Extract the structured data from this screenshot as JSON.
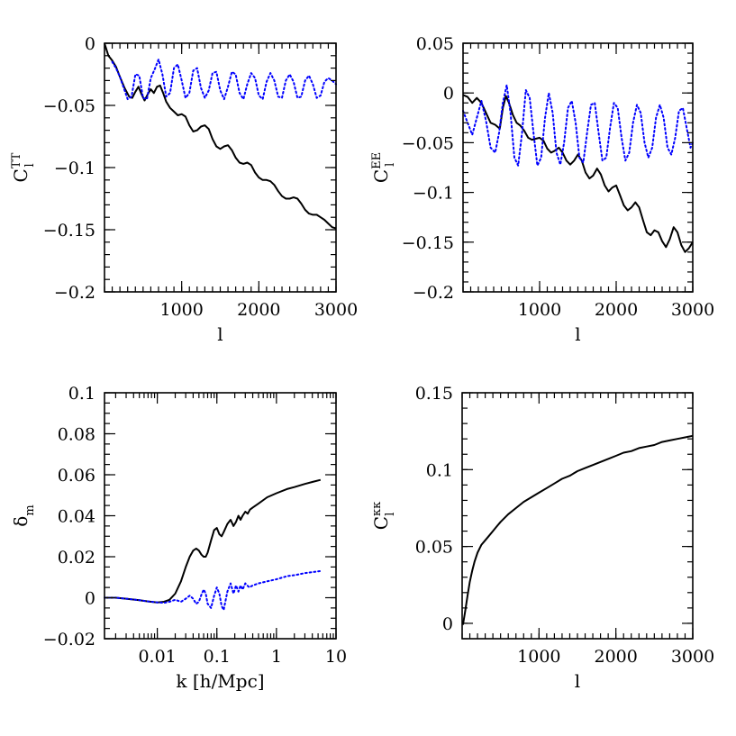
{
  "chart_data": [
    {
      "type": "line",
      "xlabel": "l",
      "ylabel": "C",
      "ylabel_sub": "l",
      "ylabel_sup": "TT",
      "xlim": [
        0,
        3000
      ],
      "ylim": [
        -0.2,
        0
      ],
      "x_scale": "linear",
      "x_ticks": [
        1000,
        2000,
        3000
      ],
      "x_tick_labels": [
        "1000",
        "2000",
        "3000"
      ],
      "y_ticks": [
        -0.2,
        -0.15,
        -0.1,
        -0.05,
        0
      ],
      "y_tick_labels": [
        "−0.2",
        "−0.15",
        "−0.1",
        "−0.05",
        "0"
      ],
      "x_minor": 100,
      "y_minor": 0.01,
      "grid": false,
      "series": [
        {
          "style": "solid",
          "color": "#000000",
          "x": [
            0,
            50,
            100,
            150,
            200,
            260,
            320,
            360,
            400,
            440,
            480,
            520,
            560,
            600,
            640,
            680,
            720,
            760,
            800,
            850,
            900,
            950,
            1000,
            1050,
            1100,
            1150,
            1200,
            1250,
            1300,
            1350,
            1400,
            1450,
            1500,
            1550,
            1600,
            1650,
            1700,
            1750,
            1800,
            1850,
            1900,
            1950,
            2000,
            2050,
            2100,
            2150,
            2200,
            2250,
            2300,
            2350,
            2400,
            2450,
            2500,
            2550,
            2600,
            2650,
            2700,
            2750,
            2800,
            2850,
            2900,
            2950,
            3000
          ],
          "y": [
            0,
            -0.01,
            -0.014,
            -0.019,
            -0.027,
            -0.036,
            -0.043,
            -0.044,
            -0.039,
            -0.035,
            -0.041,
            -0.046,
            -0.041,
            -0.037,
            -0.04,
            -0.035,
            -0.034,
            -0.04,
            -0.047,
            -0.052,
            -0.055,
            -0.058,
            -0.057,
            -0.059,
            -0.066,
            -0.071,
            -0.07,
            -0.067,
            -0.066,
            -0.069,
            -0.077,
            -0.083,
            -0.085,
            -0.083,
            -0.082,
            -0.086,
            -0.092,
            -0.096,
            -0.097,
            -0.096,
            -0.098,
            -0.104,
            -0.108,
            -0.11,
            -0.11,
            -0.111,
            -0.114,
            -0.119,
            -0.123,
            -0.125,
            -0.125,
            -0.124,
            -0.125,
            -0.129,
            -0.134,
            -0.137,
            -0.138,
            -0.138,
            -0.14,
            -0.142,
            -0.145,
            -0.148,
            -0.149
          ]
        },
        {
          "style": "dotted",
          "color": "#0000ff",
          "x": [
            100,
            150,
            200,
            250,
            300,
            350,
            400,
            450,
            500,
            550,
            600,
            650,
            700,
            750,
            800,
            850,
            900,
            950,
            1000,
            1050,
            1100,
            1150,
            1200,
            1250,
            1300,
            1350,
            1400,
            1450,
            1500,
            1550,
            1600,
            1650,
            1700,
            1750,
            1800,
            1850,
            1900,
            1950,
            2000,
            2050,
            2100,
            2150,
            2200,
            2250,
            2300,
            2350,
            2400,
            2450,
            2500,
            2550,
            2600,
            2650,
            2700,
            2750,
            2800,
            2850,
            2900,
            2950,
            3000
          ],
          "y": [
            -0.015,
            -0.02,
            -0.027,
            -0.036,
            -0.045,
            -0.043,
            -0.025,
            -0.026,
            -0.044,
            -0.045,
            -0.028,
            -0.021,
            -0.013,
            -0.025,
            -0.043,
            -0.04,
            -0.02,
            -0.017,
            -0.03,
            -0.044,
            -0.04,
            -0.022,
            -0.02,
            -0.036,
            -0.044,
            -0.038,
            -0.024,
            -0.023,
            -0.038,
            -0.045,
            -0.035,
            -0.023,
            -0.025,
            -0.04,
            -0.045,
            -0.033,
            -0.024,
            -0.028,
            -0.042,
            -0.045,
            -0.031,
            -0.024,
            -0.03,
            -0.043,
            -0.044,
            -0.03,
            -0.025,
            -0.031,
            -0.044,
            -0.043,
            -0.03,
            -0.026,
            -0.033,
            -0.044,
            -0.042,
            -0.031,
            -0.028,
            -0.03,
            -0.033
          ]
        }
      ]
    },
    {
      "type": "line",
      "xlabel": "l",
      "ylabel": "C",
      "ylabel_sub": "l",
      "ylabel_sup": "EE",
      "xlim": [
        0,
        3000
      ],
      "ylim": [
        -0.2,
        0.05
      ],
      "x_scale": "linear",
      "x_ticks": [
        1000,
        2000,
        3000
      ],
      "x_tick_labels": [
        "1000",
        "2000",
        "3000"
      ],
      "y_ticks": [
        -0.2,
        -0.15,
        -0.1,
        -0.05,
        0,
        0.05
      ],
      "y_tick_labels": [
        "−0.2",
        "−0.15",
        "−0.1",
        "−0.05",
        "0",
        "0.05"
      ],
      "x_minor": 100,
      "y_minor": 0.01,
      "grid": false,
      "series": [
        {
          "style": "solid",
          "color": "#000000",
          "x": [
            0,
            60,
            120,
            180,
            240,
            300,
            360,
            420,
            480,
            520,
            560,
            600,
            650,
            700,
            750,
            800,
            850,
            900,
            950,
            1000,
            1050,
            1100,
            1150,
            1200,
            1250,
            1300,
            1350,
            1400,
            1450,
            1500,
            1550,
            1600,
            1650,
            1700,
            1750,
            1800,
            1850,
            1900,
            1950,
            2000,
            2050,
            2100,
            2150,
            2200,
            2250,
            2300,
            2350,
            2400,
            2450,
            2500,
            2550,
            2600,
            2650,
            2700,
            2750,
            2800,
            2850,
            2900,
            2950,
            3000
          ],
          "y": [
            -0.002,
            -0.004,
            -0.01,
            -0.005,
            -0.01,
            -0.02,
            -0.03,
            -0.032,
            -0.036,
            -0.015,
            -0.003,
            -0.01,
            -0.022,
            -0.03,
            -0.033,
            -0.038,
            -0.045,
            -0.047,
            -0.046,
            -0.045,
            -0.048,
            -0.056,
            -0.06,
            -0.058,
            -0.055,
            -0.06,
            -0.068,
            -0.072,
            -0.068,
            -0.062,
            -0.068,
            -0.08,
            -0.086,
            -0.083,
            -0.076,
            -0.082,
            -0.093,
            -0.099,
            -0.095,
            -0.093,
            -0.103,
            -0.113,
            -0.118,
            -0.115,
            -0.11,
            -0.115,
            -0.128,
            -0.14,
            -0.143,
            -0.138,
            -0.14,
            -0.149,
            -0.155,
            -0.147,
            -0.135,
            -0.14,
            -0.153,
            -0.16,
            -0.156,
            -0.15
          ]
        },
        {
          "style": "dotted",
          "color": "#0000ff",
          "x": [
            0,
            60,
            120,
            180,
            240,
            300,
            360,
            420,
            470,
            520,
            570,
            620,
            670,
            720,
            770,
            820,
            870,
            920,
            970,
            1020,
            1070,
            1120,
            1170,
            1220,
            1270,
            1320,
            1370,
            1420,
            1470,
            1520,
            1570,
            1620,
            1670,
            1720,
            1770,
            1820,
            1870,
            1920,
            1970,
            2020,
            2070,
            2120,
            2170,
            2220,
            2270,
            2320,
            2370,
            2420,
            2470,
            2520,
            2570,
            2620,
            2670,
            2720,
            2770,
            2820,
            2870,
            2920,
            2970,
            3000
          ],
          "y": [
            -0.018,
            -0.03,
            -0.042,
            -0.025,
            -0.008,
            -0.028,
            -0.055,
            -0.06,
            -0.04,
            -0.01,
            0.008,
            -0.02,
            -0.065,
            -0.073,
            -0.04,
            0.003,
            -0.005,
            -0.04,
            -0.073,
            -0.065,
            -0.025,
            0.0,
            -0.02,
            -0.06,
            -0.072,
            -0.05,
            -0.015,
            -0.008,
            -0.03,
            -0.065,
            -0.07,
            -0.04,
            -0.012,
            -0.01,
            -0.04,
            -0.068,
            -0.065,
            -0.035,
            -0.01,
            -0.015,
            -0.045,
            -0.068,
            -0.06,
            -0.03,
            -0.012,
            -0.02,
            -0.05,
            -0.065,
            -0.055,
            -0.025,
            -0.012,
            -0.025,
            -0.055,
            -0.062,
            -0.045,
            -0.018,
            -0.015,
            -0.035,
            -0.055,
            -0.05
          ]
        }
      ]
    },
    {
      "type": "line",
      "xlabel": "k [h/Mpc]",
      "ylabel": "δ",
      "ylabel_sub": "m",
      "ylabel_sup": "",
      "xlim": [
        0.0013,
        10
      ],
      "ylim": [
        -0.02,
        0.1
      ],
      "x_scale": "log",
      "x_ticks": [
        0.01,
        0.1,
        1,
        10
      ],
      "x_tick_labels": [
        "0.01",
        "0.1",
        "1",
        "10"
      ],
      "y_ticks": [
        -0.02,
        0,
        0.02,
        0.04,
        0.06,
        0.08,
        0.1
      ],
      "y_tick_labels": [
        "−0.02",
        "0",
        "0.02",
        "0.04",
        "0.06",
        "0.08",
        "0.1"
      ],
      "y_minor": 0.005,
      "grid": false,
      "series": [
        {
          "style": "solid",
          "color": "#000000",
          "x": [
            0.0013,
            0.002,
            0.003,
            0.005,
            0.007,
            0.01,
            0.013,
            0.016,
            0.02,
            0.025,
            0.03,
            0.035,
            0.04,
            0.045,
            0.05,
            0.055,
            0.06,
            0.065,
            0.07,
            0.08,
            0.09,
            0.1,
            0.11,
            0.12,
            0.13,
            0.15,
            0.17,
            0.19,
            0.21,
            0.23,
            0.25,
            0.27,
            0.3,
            0.33,
            0.36,
            0.4,
            0.5,
            0.7,
            1,
            1.5,
            2,
            3,
            4,
            5.5
          ],
          "y": [
            0,
            0,
            -0.0005,
            -0.0012,
            -0.0018,
            -0.0023,
            -0.002,
            -0.001,
            0.002,
            0.008,
            0.015,
            0.02,
            0.023,
            0.024,
            0.023,
            0.021,
            0.02,
            0.02,
            0.022,
            0.028,
            0.033,
            0.034,
            0.031,
            0.03,
            0.032,
            0.036,
            0.038,
            0.035,
            0.037,
            0.04,
            0.038,
            0.04,
            0.042,
            0.041,
            0.043,
            0.044,
            0.046,
            0.049,
            0.051,
            0.053,
            0.054,
            0.0555,
            0.0565,
            0.0575
          ]
        },
        {
          "style": "dotted",
          "color": "#0000ff",
          "x": [
            0.0013,
            0.002,
            0.003,
            0.005,
            0.007,
            0.01,
            0.013,
            0.016,
            0.02,
            0.025,
            0.03,
            0.035,
            0.04,
            0.045,
            0.05,
            0.055,
            0.06,
            0.065,
            0.07,
            0.08,
            0.09,
            0.1,
            0.11,
            0.12,
            0.13,
            0.15,
            0.17,
            0.19,
            0.21,
            0.23,
            0.25,
            0.27,
            0.3,
            0.35,
            0.4,
            0.5,
            0.7,
            1,
            1.5,
            2,
            3,
            4,
            5.5
          ],
          "y": [
            0,
            0,
            -0.0005,
            -0.0012,
            -0.0018,
            -0.0023,
            -0.0025,
            -0.002,
            -0.001,
            -0.002,
            -0.0005,
            0.001,
            -0.0005,
            -0.003,
            -0.002,
            0.0015,
            0.004,
            0.002,
            -0.003,
            -0.005,
            0.001,
            0.005,
            0.002,
            -0.004,
            -0.006,
            0.003,
            0.007,
            0.002,
            0.006,
            0.003,
            0.006,
            0.004,
            0.007,
            0.005,
            0.006,
            0.007,
            0.008,
            0.009,
            0.0105,
            0.011,
            0.012,
            0.0125,
            0.013
          ]
        }
      ]
    },
    {
      "type": "line",
      "xlabel": "l",
      "ylabel": "C",
      "ylabel_sub": "l",
      "ylabel_sup": "κκ",
      "xlim": [
        0,
        3000
      ],
      "ylim": [
        -0.01,
        0.15
      ],
      "x_scale": "linear",
      "x_ticks": [
        1000,
        2000,
        3000
      ],
      "x_tick_labels": [
        "1000",
        "2000",
        "3000"
      ],
      "y_ticks": [
        0,
        0.05,
        0.1,
        0.15
      ],
      "y_tick_labels": [
        "0",
        "0.05",
        "0.1",
        "0.15"
      ],
      "x_minor": 100,
      "y_minor": 0.01,
      "grid": false,
      "series": [
        {
          "style": "solid",
          "color": "#000000",
          "x": [
            10,
            40,
            70,
            100,
            130,
            160,
            200,
            250,
            300,
            350,
            400,
            450,
            500,
            600,
            700,
            800,
            900,
            1000,
            1100,
            1200,
            1300,
            1400,
            1500,
            1600,
            1700,
            1800,
            1900,
            2000,
            2100,
            2200,
            2300,
            2400,
            2500,
            2600,
            2700,
            2800,
            2900,
            3000
          ],
          "y": [
            -0.001,
            0.008,
            0.018,
            0.027,
            0.034,
            0.04,
            0.046,
            0.051,
            0.054,
            0.057,
            0.06,
            0.063,
            0.066,
            0.071,
            0.075,
            0.079,
            0.082,
            0.085,
            0.088,
            0.091,
            0.094,
            0.096,
            0.099,
            0.101,
            0.103,
            0.105,
            0.107,
            0.109,
            0.111,
            0.112,
            0.114,
            0.115,
            0.116,
            0.118,
            0.119,
            0.12,
            0.121,
            0.122
          ]
        }
      ]
    }
  ]
}
